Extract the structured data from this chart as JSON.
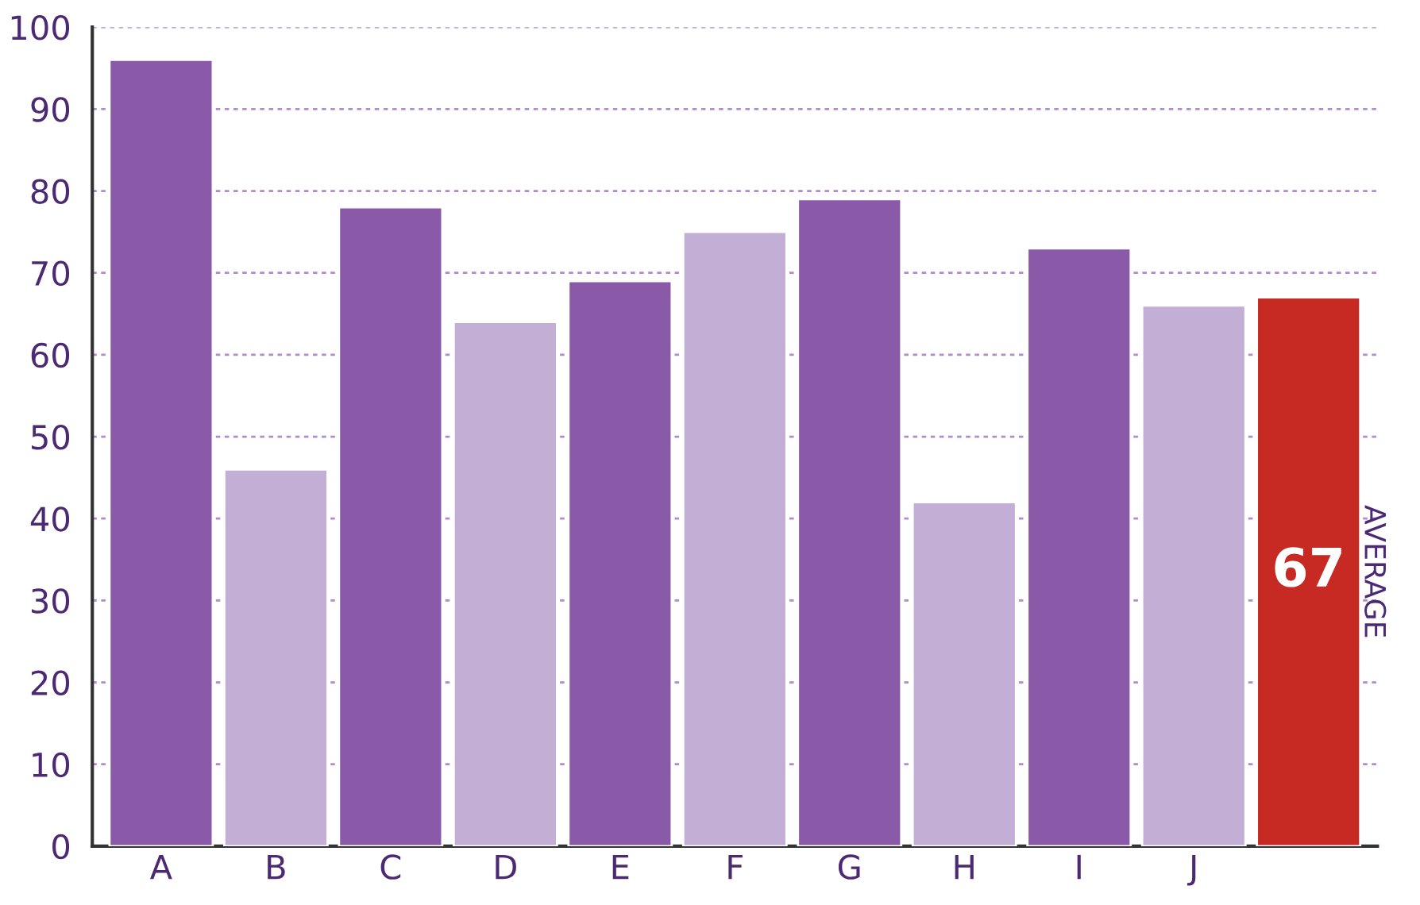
{
  "chart_data": {
    "type": "bar",
    "categories": [
      "A",
      "B",
      "C",
      "D",
      "E",
      "F",
      "G",
      "H",
      "I",
      "J",
      null
    ],
    "values": [
      96,
      46,
      78,
      64,
      69,
      75,
      79,
      42,
      73,
      66,
      67
    ],
    "colors": [
      "#8a5aa8",
      "#c3aed6",
      "#8a5aa8",
      "#c3aed6",
      "#8a5aa8",
      "#c3aed6",
      "#8a5aa8",
      "#c3aed6",
      "#8a5aa8",
      "#c3aed6",
      "#c62a22"
    ],
    "value_labels": [
      null,
      null,
      null,
      null,
      null,
      null,
      null,
      null,
      null,
      null,
      "67"
    ],
    "annotations": [
      "AVERAGE"
    ],
    "ylim": [
      0,
      100
    ],
    "yticks": [
      0,
      10,
      20,
      30,
      40,
      50,
      60,
      70,
      80,
      90,
      100
    ],
    "grid": "y",
    "legend": false
  }
}
